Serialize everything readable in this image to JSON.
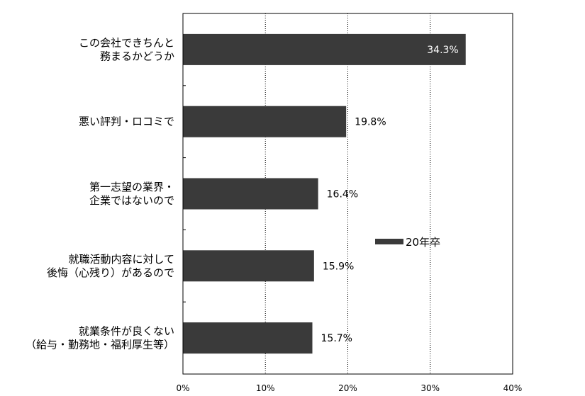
{
  "chart_data": {
    "type": "bar",
    "orientation": "horizontal",
    "categories": [
      [
        "この会社できちんと",
        "務まるかどうか"
      ],
      [
        "悪い評判・ロコミで"
      ],
      [
        "第一志望の業界・",
        "企業ではないので"
      ],
      [
        "就職活動内容に対して",
        "後悔（心残り）があるので"
      ],
      [
        "就業条件が良くない",
        "（給与・勤務地・福利厚生等）"
      ]
    ],
    "series": [
      {
        "name": "20年卒",
        "values": [
          34.3,
          19.8,
          16.4,
          15.9,
          15.7
        ],
        "labels": [
          "34.3%",
          "19.8%",
          "16.4%",
          "15.9%",
          "15.7%"
        ]
      }
    ],
    "xlim": [
      0,
      40
    ],
    "xticks": [
      "0%",
      "10%",
      "20%",
      "30%",
      "40%"
    ],
    "grid": "vertical dotted",
    "legend": "right",
    "title": "",
    "xlabel": "",
    "ylabel": "",
    "colors": {
      "bar": "#3a3a3a",
      "axis": "#000000",
      "inside_label": "#ffffff",
      "outside_label": "#000000"
    }
  }
}
